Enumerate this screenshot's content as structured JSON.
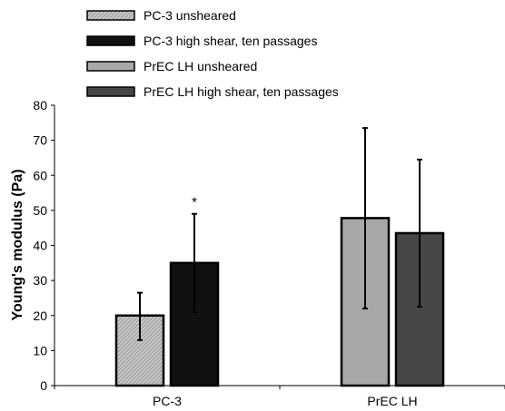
{
  "chart_data": {
    "type": "bar",
    "title": "",
    "xlabel": "",
    "ylabel": "Young's modulus (Pa)",
    "ylim": [
      0,
      80
    ],
    "yticks": [
      0,
      10,
      20,
      30,
      40,
      50,
      60,
      70,
      80
    ],
    "grid": false,
    "legend_position": "top-left",
    "categories": [
      "PC-3",
      "PrEC LH"
    ],
    "series": [
      {
        "name": "PC-3 unsheared",
        "category": "PC-3",
        "value": 20,
        "error_low": 13,
        "error_high": 26.5,
        "color": "#b3b3b3",
        "pattern": "hatched"
      },
      {
        "name": "PC-3 high shear, ten passages",
        "category": "PC-3",
        "value": 35,
        "error_low": 21,
        "error_high": 49,
        "color": "#111111",
        "pattern": "solid"
      },
      {
        "name": "PrEC LH unsheared",
        "category": "PrEC LH",
        "value": 47.8,
        "error_low": 22,
        "error_high": 73.5,
        "color": "#a8a8a8",
        "pattern": "solid"
      },
      {
        "name": "PrEC LH high shear, ten passages",
        "category": "PrEC LH",
        "value": 43.5,
        "error_low": 22.5,
        "error_high": 64.5,
        "color": "#474747",
        "pattern": "solid"
      }
    ],
    "annotations": [
      {
        "text": "*",
        "series": "PC-3 high shear, ten passages"
      }
    ]
  }
}
